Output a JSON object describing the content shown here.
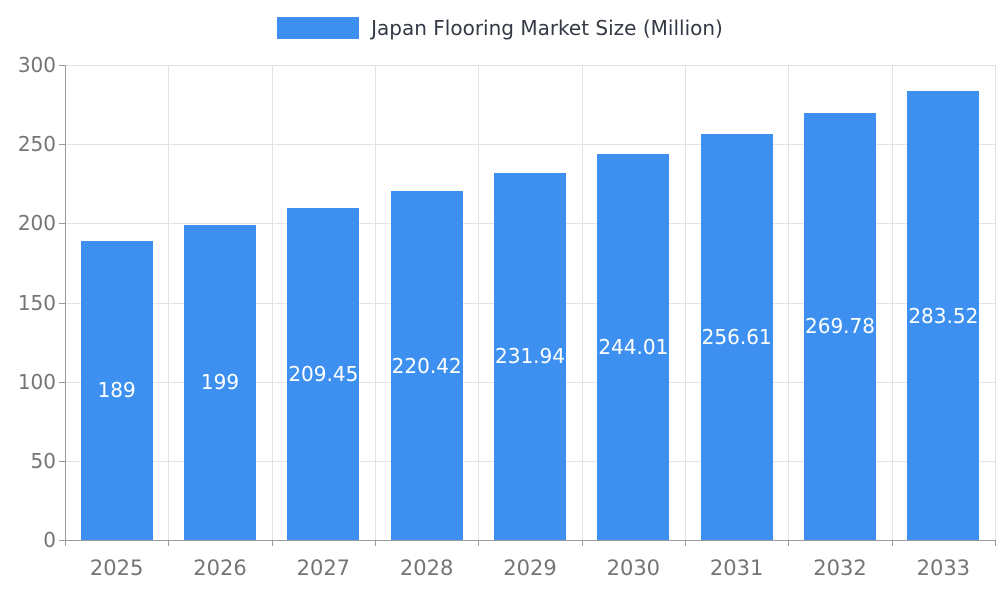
{
  "chart_data": {
    "type": "bar",
    "title": "Japan Flooring Market Size (Million)",
    "categories": [
      "2025",
      "2026",
      "2027",
      "2028",
      "2029",
      "2030",
      "2031",
      "2032",
      "2033"
    ],
    "values": [
      189,
      199,
      209.45,
      220.42,
      231.94,
      244.01,
      256.61,
      269.78,
      283.52
    ],
    "value_labels": [
      "189",
      "199",
      "209.45",
      "220.42",
      "231.94",
      "244.01",
      "256.61",
      "269.78",
      "283.52"
    ],
    "xlabel": "",
    "ylabel": "",
    "ylim": [
      0,
      300
    ],
    "ytick_step": 50,
    "ytick_labels": [
      "0",
      "50",
      "100",
      "150",
      "200",
      "250",
      "300"
    ],
    "grid": true,
    "legend_position": "top-center",
    "legend_entries": [
      "Japan Flooring Market Size (Million)"
    ],
    "colors": {
      "bar_fill": "#3d90ef",
      "bar_label_text": "#ffffff",
      "axis_line": "#9a9a9a",
      "gridline": "#e3e3e3",
      "tick_text": "#757575",
      "legend_text": "#333a45",
      "background": "#ffffff"
    }
  }
}
